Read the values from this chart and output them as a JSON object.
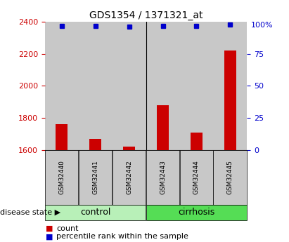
{
  "title": "GDS1354 / 1371321_at",
  "samples": [
    "GSM32440",
    "GSM32441",
    "GSM32442",
    "GSM32443",
    "GSM32444",
    "GSM32445"
  ],
  "counts": [
    1760,
    1670,
    1620,
    1880,
    1710,
    2220
  ],
  "percentile_ranks": [
    97,
    97,
    96,
    97,
    97,
    98
  ],
  "ylim_left": [
    1600,
    2400
  ],
  "ylim_right": [
    0,
    100
  ],
  "yticks_left": [
    1600,
    1800,
    2000,
    2200,
    2400
  ],
  "yticks_right": [
    0,
    25,
    50,
    75,
    100
  ],
  "bar_color": "#cc0000",
  "dot_color": "#0000cc",
  "bar_width": 0.35,
  "bg_color": "#ffffff",
  "tick_color_left": "#cc0000",
  "tick_color_right": "#0000cc",
  "legend_count_label": "count",
  "legend_pct_label": "percentile rank within the sample",
  "disease_state_label": "disease state",
  "cell_bg": "#c8c8c8",
  "group_labels": [
    "control",
    "cirrhosis"
  ],
  "group_colors": [
    "#b8f0b8",
    "#55dd55"
  ],
  "group_sizes": [
    3,
    3
  ]
}
